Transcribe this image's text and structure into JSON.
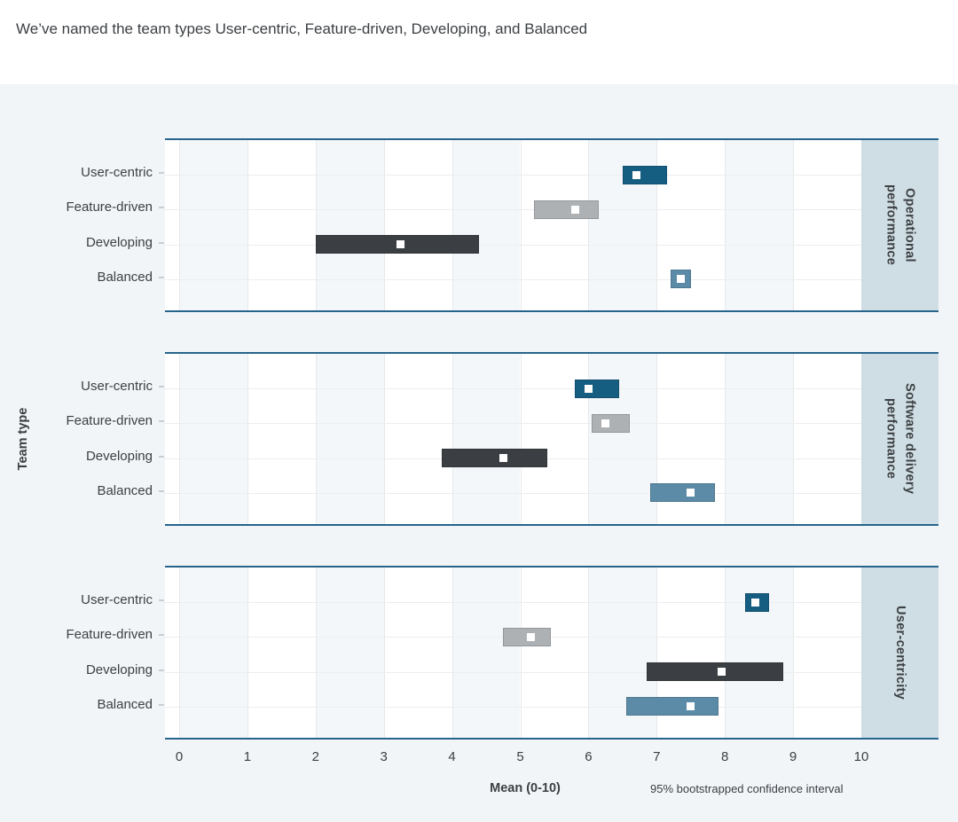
{
  "title": "We’ve named the team types User-centric, Feature-driven, Developing, and Balanced",
  "colors": {
    "accent_border": "#26648c",
    "card_bg": "#f2f5f8",
    "strip_bg": "#cfdde4",
    "band_bg": "#f4f7f9",
    "text": "#3c4043",
    "teams": {
      "User-centric": "#155d81",
      "Feature-driven": "#aeb1b4",
      "Developing": "#3b3f43",
      "Balanced": "#5b8ba7"
    }
  },
  "chart_data": {
    "type": "bar",
    "subtype": "horizontal-confidence-interval",
    "title": "We’ve named the team types User-centric, Feature-driven, Developing, and Balanced",
    "xlabel": "Mean (0-10)",
    "ylabel": "Team type",
    "legend_note": "95% bootstrapped confidence interval",
    "xlim": [
      0,
      10
    ],
    "x_ticks": [
      0,
      1,
      2,
      3,
      4,
      5,
      6,
      7,
      8,
      9,
      10
    ],
    "grid": "on",
    "band_starts": [
      0,
      2,
      4,
      6,
      8
    ],
    "panels": [
      {
        "label": "Operational performance",
        "rows": [
          {
            "team": "User-centric",
            "ci_low": 6.5,
            "ci_high": 7.15,
            "mean": 6.7
          },
          {
            "team": "Feature-driven",
            "ci_low": 5.2,
            "ci_high": 6.15,
            "mean": 5.8
          },
          {
            "team": "Developing",
            "ci_low": 2.0,
            "ci_high": 4.4,
            "mean": 3.25
          },
          {
            "team": "Balanced",
            "ci_low": 7.2,
            "ci_high": 7.5,
            "mean": 7.35
          }
        ]
      },
      {
        "label": "Software delivery performance",
        "rows": [
          {
            "team": "User-centric",
            "ci_low": 5.8,
            "ci_high": 6.45,
            "mean": 6.0
          },
          {
            "team": "Feature-driven",
            "ci_low": 6.05,
            "ci_high": 6.6,
            "mean": 6.25
          },
          {
            "team": "Developing",
            "ci_low": 3.85,
            "ci_high": 5.4,
            "mean": 4.75
          },
          {
            "team": "Balanced",
            "ci_low": 6.9,
            "ci_high": 7.85,
            "mean": 7.5
          }
        ]
      },
      {
        "label": "User-centricity",
        "rows": [
          {
            "team": "User-centric",
            "ci_low": 8.3,
            "ci_high": 8.65,
            "mean": 8.45
          },
          {
            "team": "Feature-driven",
            "ci_low": 4.75,
            "ci_high": 5.45,
            "mean": 5.15
          },
          {
            "team": "Developing",
            "ci_low": 6.85,
            "ci_high": 8.85,
            "mean": 7.95
          },
          {
            "team": "Balanced",
            "ci_low": 6.55,
            "ci_high": 7.9,
            "mean": 7.5
          }
        ]
      }
    ]
  }
}
